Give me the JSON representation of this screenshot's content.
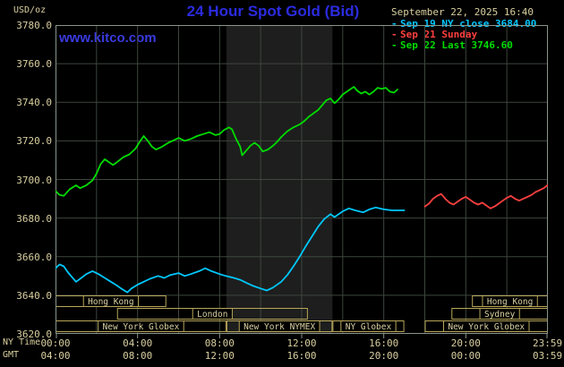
{
  "header": {
    "unit_label": "USD/oz",
    "title": "24 Hour Spot Gold (Bid)",
    "website": "www.kitco.com",
    "datetime": "September 22, 2025 16:40",
    "legend": [
      {
        "label": "Sep 19 NY close 3684.00",
        "color": "#00c8ff"
      },
      {
        "label": "Sep 21 Sunday",
        "color": "#ff4040"
      },
      {
        "label": "Sep 22 Last 3746.60",
        "color": "#00dd00"
      }
    ]
  },
  "ui_colors": {
    "background": "#000000",
    "title_blue": "#2b2bdf",
    "link_blue": "#3a3ae0",
    "text_tan": "#d8cf9f",
    "grid": "#3d463d",
    "frame": "#8a968a",
    "session_box": "#b8a658",
    "band": "#1e1e1e"
  },
  "axes": {
    "ny_time_label": "NY Time",
    "gmt_label": "GMT",
    "y_ticks": [
      "3780.0",
      "3760.0",
      "3740.0",
      "3720.0",
      "3700.0",
      "3680.0",
      "3660.0",
      "3640.0",
      "3620.0"
    ],
    "ny_ticks": [
      "00:00",
      "04:00",
      "08:00",
      "12:00",
      "16:00",
      "20:00",
      "23:59"
    ],
    "gmt_ticks": [
      "04:00",
      "08:00",
      "12:00",
      "16:00",
      "20:00",
      "00:00",
      "03:59"
    ],
    "tick_hours": [
      0,
      4,
      8,
      12,
      16,
      20,
      23.98
    ]
  },
  "sessions": [
    {
      "row": 0,
      "label": "Hong Kong",
      "start": 0,
      "end": 5.4
    },
    {
      "row": 0,
      "label": "Hong Kong",
      "start": 20.3,
      "end": 24
    },
    {
      "row": 1,
      "label": "London",
      "start": 3.0,
      "end": 12.3
    },
    {
      "row": 1,
      "label": "Sydney",
      "start": 19.3,
      "end": 24
    },
    {
      "row": 2,
      "label": "New York Globex",
      "start": 0,
      "end": 8.33
    },
    {
      "row": 2,
      "label": "New York NYMEX",
      "start": 8.33,
      "end": 13.5
    },
    {
      "row": 2,
      "label": "NY Globex",
      "start": 13.5,
      "end": 17.0
    },
    {
      "row": 2,
      "label": "New York Globex",
      "start": 18.0,
      "end": 24
    }
  ],
  "chart_data": {
    "type": "line",
    "title": "24 Hour Spot Gold (Bid)",
    "xlabel": "NY Time (hours)",
    "ylabel": "USD/oz",
    "xlim": [
      0,
      24
    ],
    "ylim": [
      3620,
      3780
    ],
    "x_grid_step": 2,
    "y_grid_step": 20,
    "grid": true,
    "legend_position": "top-right",
    "highlight_band": {
      "x0": 8.33,
      "x1": 13.5,
      "color": "#1e1e1e"
    },
    "series": [
      {
        "name": "Sep 19 NY close 3684.00",
        "color": "#00c8ff",
        "points": [
          [
            0,
            3654
          ],
          [
            0.2,
            3656
          ],
          [
            0.4,
            3655
          ],
          [
            0.6,
            3652
          ],
          [
            0.8,
            3649.5
          ],
          [
            1,
            3647
          ],
          [
            1.2,
            3648.5
          ],
          [
            1.5,
            3651
          ],
          [
            1.8,
            3652.5
          ],
          [
            2.1,
            3651
          ],
          [
            2.4,
            3649
          ],
          [
            2.7,
            3647
          ],
          [
            3,
            3645
          ],
          [
            3.2,
            3643.5
          ],
          [
            3.5,
            3641.5
          ],
          [
            3.7,
            3643.5
          ],
          [
            4,
            3645.5
          ],
          [
            4.3,
            3647
          ],
          [
            4.6,
            3648.5
          ],
          [
            5,
            3650
          ],
          [
            5.3,
            3649
          ],
          [
            5.6,
            3650.5
          ],
          [
            6,
            3651.5
          ],
          [
            6.3,
            3650
          ],
          [
            6.6,
            3651
          ],
          [
            7,
            3652.5
          ],
          [
            7.3,
            3654
          ],
          [
            7.6,
            3652.5
          ],
          [
            8,
            3651
          ],
          [
            8.3,
            3650
          ],
          [
            8.7,
            3649
          ],
          [
            9,
            3648
          ],
          [
            9.3,
            3646.5
          ],
          [
            9.6,
            3645
          ],
          [
            10,
            3643.5
          ],
          [
            10.3,
            3642.5
          ],
          [
            10.6,
            3644
          ],
          [
            11,
            3647
          ],
          [
            11.3,
            3650.5
          ],
          [
            11.6,
            3655
          ],
          [
            11.9,
            3660
          ],
          [
            12.2,
            3665.5
          ],
          [
            12.5,
            3670.5
          ],
          [
            12.8,
            3675.5
          ],
          [
            13.1,
            3679.5
          ],
          [
            13.4,
            3682
          ],
          [
            13.6,
            3680.5
          ],
          [
            13.8,
            3682
          ],
          [
            14,
            3683.5
          ],
          [
            14.3,
            3685
          ],
          [
            14.6,
            3684
          ],
          [
            15,
            3683
          ],
          [
            15.3,
            3684.5
          ],
          [
            15.6,
            3685.5
          ],
          [
            16,
            3684.5
          ],
          [
            16.4,
            3684
          ],
          [
            17,
            3684
          ]
        ]
      },
      {
        "name": "Sep 21 Sunday",
        "color": "#ff4040",
        "points": [
          [
            18,
            3686
          ],
          [
            18.2,
            3687.5
          ],
          [
            18.4,
            3690
          ],
          [
            18.6,
            3691.5
          ],
          [
            18.8,
            3692.5
          ],
          [
            19,
            3690
          ],
          [
            19.2,
            3688
          ],
          [
            19.4,
            3687
          ],
          [
            19.6,
            3688.5
          ],
          [
            19.8,
            3690
          ],
          [
            20,
            3691
          ],
          [
            20.2,
            3689.5
          ],
          [
            20.4,
            3688
          ],
          [
            20.6,
            3687
          ],
          [
            20.8,
            3688
          ],
          [
            21,
            3686.5
          ],
          [
            21.2,
            3685
          ],
          [
            21.4,
            3686
          ],
          [
            21.6,
            3687.5
          ],
          [
            21.8,
            3689
          ],
          [
            22,
            3690.5
          ],
          [
            22.2,
            3691.5
          ],
          [
            22.4,
            3690
          ],
          [
            22.6,
            3689
          ],
          [
            22.8,
            3690
          ],
          [
            23,
            3691
          ],
          [
            23.2,
            3692
          ],
          [
            23.4,
            3693.5
          ],
          [
            23.6,
            3694.5
          ],
          [
            23.8,
            3695.5
          ],
          [
            23.98,
            3697
          ]
        ]
      },
      {
        "name": "Sep 22 Last 3746.60",
        "color": "#00dd00",
        "points": [
          [
            0,
            3694
          ],
          [
            0.2,
            3692
          ],
          [
            0.4,
            3691.5
          ],
          [
            0.7,
            3695
          ],
          [
            1,
            3697
          ],
          [
            1.2,
            3695.5
          ],
          [
            1.5,
            3697
          ],
          [
            1.8,
            3699.5
          ],
          [
            2,
            3703
          ],
          [
            2.2,
            3708
          ],
          [
            2.4,
            3710.5
          ],
          [
            2.6,
            3709
          ],
          [
            2.8,
            3707.5
          ],
          [
            3,
            3709
          ],
          [
            3.3,
            3711.5
          ],
          [
            3.6,
            3713
          ],
          [
            3.9,
            3716
          ],
          [
            4.1,
            3719.5
          ],
          [
            4.3,
            3722.5
          ],
          [
            4.5,
            3720
          ],
          [
            4.7,
            3717
          ],
          [
            4.9,
            3715.5
          ],
          [
            5.2,
            3717
          ],
          [
            5.5,
            3719
          ],
          [
            5.8,
            3720.5
          ],
          [
            6,
            3721.5
          ],
          [
            6.3,
            3720
          ],
          [
            6.6,
            3721
          ],
          [
            6.9,
            3722.5
          ],
          [
            7.2,
            3723.5
          ],
          [
            7.5,
            3724.5
          ],
          [
            7.8,
            3723
          ],
          [
            8,
            3723.5
          ],
          [
            8.2,
            3725.5
          ],
          [
            8.45,
            3727
          ],
          [
            8.6,
            3726
          ],
          [
            8.8,
            3721
          ],
          [
            9,
            3717
          ],
          [
            9.1,
            3712.5
          ],
          [
            9.3,
            3715
          ],
          [
            9.5,
            3717.5
          ],
          [
            9.7,
            3719
          ],
          [
            9.9,
            3717.5
          ],
          [
            10.1,
            3714.5
          ],
          [
            10.35,
            3715.5
          ],
          [
            10.6,
            3717.5
          ],
          [
            10.8,
            3719.5
          ],
          [
            11,
            3722
          ],
          [
            11.3,
            3725
          ],
          [
            11.6,
            3727
          ],
          [
            11.9,
            3728.5
          ],
          [
            12.1,
            3730
          ],
          [
            12.35,
            3732.5
          ],
          [
            12.6,
            3734.5
          ],
          [
            12.8,
            3736
          ],
          [
            13,
            3738.5
          ],
          [
            13.2,
            3741
          ],
          [
            13.4,
            3742
          ],
          [
            13.6,
            3739.5
          ],
          [
            13.8,
            3741.5
          ],
          [
            14,
            3744
          ],
          [
            14.2,
            3745.5
          ],
          [
            14.4,
            3747
          ],
          [
            14.55,
            3748
          ],
          [
            14.7,
            3746
          ],
          [
            14.9,
            3744.5
          ],
          [
            15.1,
            3745.5
          ],
          [
            15.3,
            3744
          ],
          [
            15.5,
            3745.5
          ],
          [
            15.7,
            3747.5
          ],
          [
            15.9,
            3747
          ],
          [
            16.1,
            3747.5
          ],
          [
            16.3,
            3745.5
          ],
          [
            16.5,
            3745
          ],
          [
            16.67,
            3746.6
          ]
        ]
      }
    ]
  }
}
